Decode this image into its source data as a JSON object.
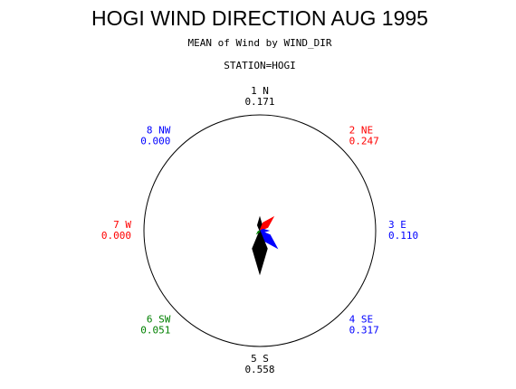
{
  "chart_data": {
    "type": "star",
    "title": "HOGI WIND DIRECTION AUG 1995",
    "subtitle": "MEAN of Wind by WIND_DIR",
    "group_label": "STATION=HOGI",
    "categories": [
      "1 N",
      "2 NE",
      "3 E",
      "4 SE",
      "5 S",
      "6 SW",
      "7 W",
      "8 NW"
    ],
    "values": [
      0.171,
      0.247,
      0.11,
      0.317,
      0.558,
      0.051,
      0,
      0
    ],
    "value_labels": [
      "0.171",
      "0.247",
      "0.110",
      "0.317",
      "0.558",
      "0.051",
      "0.000",
      "0.000"
    ],
    "colors": [
      "#000000",
      "#ff0000",
      "#0000ff",
      "#0000ff",
      "#000000",
      "#008000",
      "#ff0000",
      "#0000ff"
    ],
    "rlim": [
      0,
      1.5
    ]
  }
}
